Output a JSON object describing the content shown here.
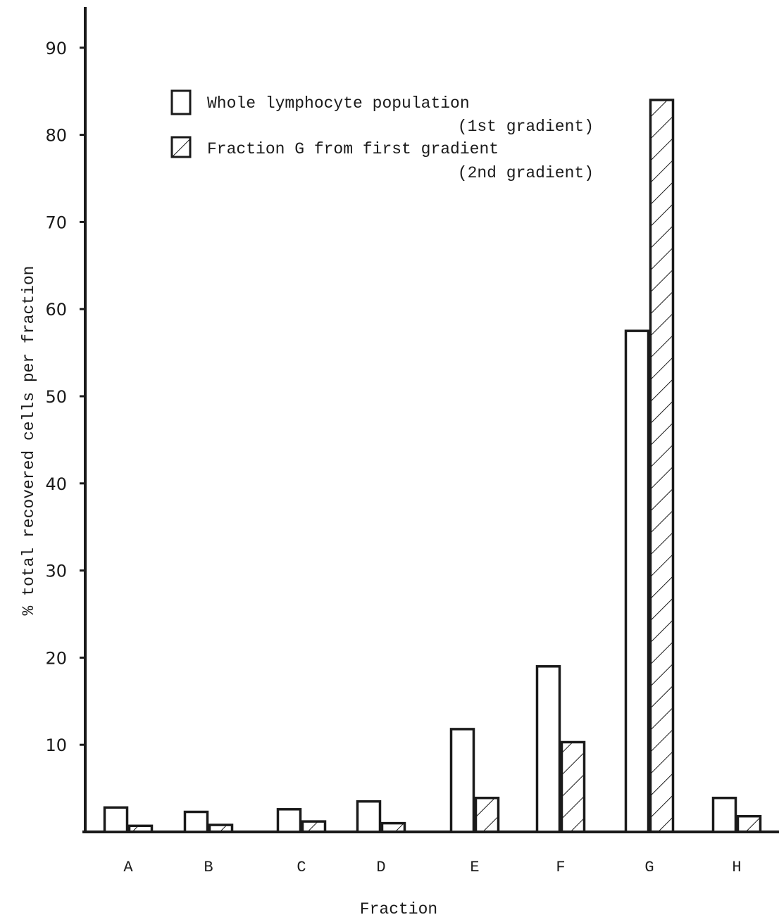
{
  "chart_data": {
    "type": "bar",
    "title": "",
    "xlabel": "Fraction",
    "ylabel": "% total recovered cells per fraction",
    "ylim": [
      0,
      95
    ],
    "yticks": [
      10,
      20,
      30,
      40,
      50,
      60,
      70,
      80,
      90
    ],
    "categories": [
      "A",
      "B",
      "C",
      "D",
      "E",
      "F",
      "G",
      "H"
    ],
    "grid": false,
    "legend_position": "top-center",
    "series": [
      {
        "name": "Whole lymphocyte population",
        "legend_sub": "(1st gradient)",
        "fill": "open",
        "values": [
          2.8,
          2.3,
          2.6,
          3.5,
          11.8,
          19.0,
          57.5,
          3.9
        ]
      },
      {
        "name": "Fraction G from first gradient",
        "legend_sub": "(2nd gradient)",
        "fill": "hatched",
        "values": [
          0.7,
          0.8,
          1.2,
          1.0,
          3.9,
          10.3,
          84.0,
          1.8
        ]
      }
    ]
  }
}
